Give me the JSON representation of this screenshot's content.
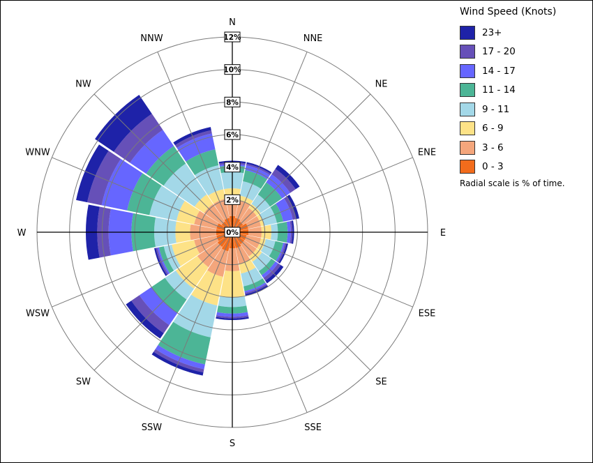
{
  "chart_data": {
    "type": "wind-rose",
    "title": "",
    "radial_unit": "%",
    "radial_max": 12,
    "radial_ticks": [
      0,
      2,
      4,
      6,
      8,
      10,
      12
    ],
    "directions": [
      "N",
      "NNE",
      "NE",
      "ENE",
      "E",
      "ESE",
      "SE",
      "SSE",
      "S",
      "SSW",
      "SW",
      "WSW",
      "W",
      "WNW",
      "NW",
      "NNW"
    ],
    "legend": {
      "title": "Wind Speed (Knots)",
      "note": "Radial scale is % of time.",
      "placement": "top-right"
    },
    "bins": [
      {
        "label": "0 - 3",
        "color": "#f26c1c"
      },
      {
        "label": "3 - 6",
        "color": "#f4a67c"
      },
      {
        "label": "6 - 9",
        "color": "#fde287"
      },
      {
        "label": "9 - 11",
        "color": "#a3d8e8"
      },
      {
        "label": "11 - 14",
        "color": "#4cb596"
      },
      {
        "label": "14 - 17",
        "color": "#6666ff"
      },
      {
        "label": "17 - 20",
        "color": "#6650b8"
      },
      {
        "label": "23+",
        "color": "#1e22a8"
      }
    ],
    "sector_rows": [
      [
        "N",
        1.0,
        2.2,
        2.7,
        3.7,
        4.1,
        4.2,
        4.3,
        4.4
      ],
      [
        "NNE",
        0.9,
        2.0,
        2.3,
        3.2,
        3.9,
        4.2,
        4.3,
        4.4
      ],
      [
        "NE",
        0.8,
        1.8,
        2.1,
        2.8,
        3.7,
        4.3,
        4.7,
        5.0
      ],
      [
        "ENE",
        1.0,
        1.8,
        2.0,
        2.8,
        3.2,
        3.8,
        4.0,
        4.2
      ],
      [
        "E",
        1.0,
        1.8,
        2.4,
        2.8,
        3.4,
        3.6,
        3.7,
        3.8
      ],
      [
        "ESE",
        0.9,
        1.8,
        2.1,
        2.7,
        3.2,
        3.3,
        3.4,
        3.5
      ],
      [
        "SE",
        0.9,
        1.8,
        2.2,
        2.9,
        3.2,
        3.4,
        3.6,
        3.8
      ],
      [
        "SSE",
        1.0,
        2.0,
        2.6,
        3.4,
        3.7,
        3.8,
        3.9,
        4.0
      ],
      [
        "S",
        1.0,
        2.4,
        4.0,
        4.6,
        5.0,
        5.2,
        5.3,
        5.4
      ],
      [
        "SSW",
        1.2,
        2.8,
        4.6,
        6.6,
        8.3,
        8.6,
        8.8,
        9.0
      ],
      [
        "SW",
        1.1,
        2.6,
        4.2,
        5.0,
        6.0,
        6.9,
        7.5,
        7.9
      ],
      [
        "WSW",
        1.0,
        2.4,
        3.8,
        4.3,
        4.6,
        4.7,
        4.8,
        4.9
      ],
      [
        "W",
        1.0,
        2.6,
        3.5,
        4.8,
        6.2,
        7.6,
        8.3,
        9.0
      ],
      [
        "WNW",
        1.0,
        2.4,
        3.5,
        5.2,
        6.6,
        8.2,
        9.1,
        9.8
      ],
      [
        "NW",
        0.8,
        2.1,
        2.8,
        5.1,
        6.4,
        7.6,
        8.8,
        10.2
      ],
      [
        "NNW",
        0.9,
        2.1,
        2.7,
        4.2,
        5.2,
        6.2,
        6.4,
        6.6
      ]
    ]
  }
}
